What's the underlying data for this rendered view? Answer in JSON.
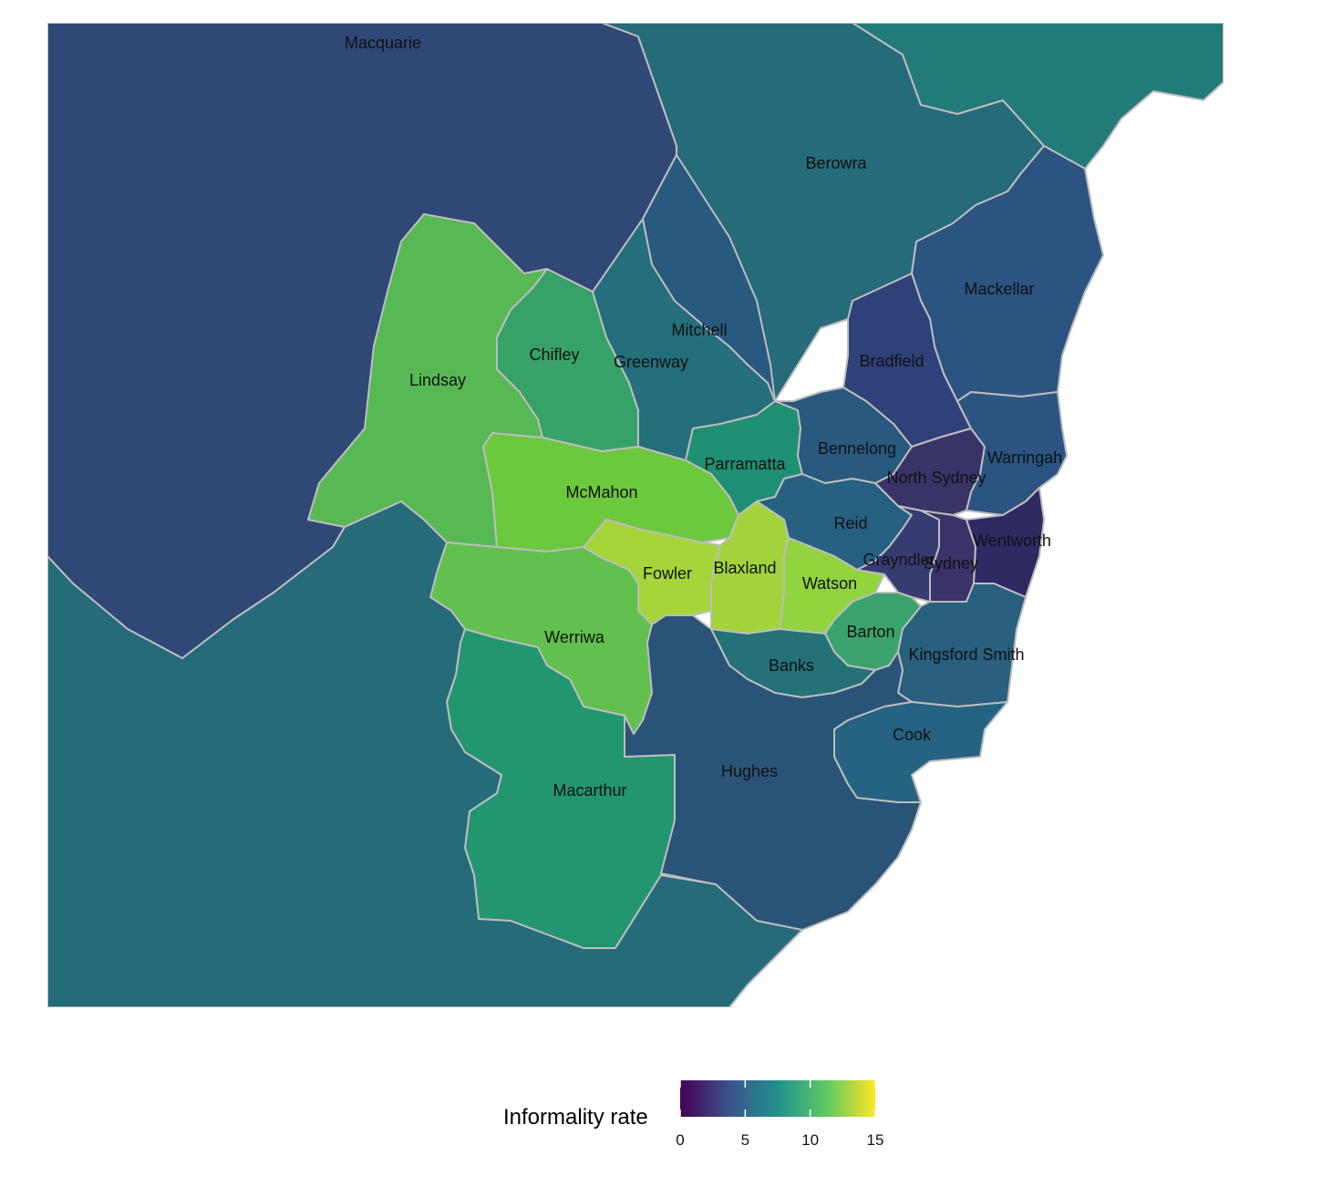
{
  "legend": {
    "title": "Informality rate",
    "min": 0,
    "max": 15,
    "ticks": [
      {
        "value": 0,
        "label": "0"
      },
      {
        "value": 5,
        "label": "5"
      },
      {
        "value": 10,
        "label": "10"
      },
      {
        "value": 15,
        "label": "15"
      }
    ],
    "colors": [
      "#440154",
      "#3b528b",
      "#21918c",
      "#5ec962",
      "#fde725"
    ]
  },
  "regions": [
    {
      "label": "Macquarie",
      "value": 4.8,
      "color": "#2f4875"
    },
    {
      "label": "Berowra",
      "value": 7.0,
      "color": "#256b7a"
    },
    {
      "label": "",
      "value": 8.2,
      "color": "#227b79"
    },
    {
      "label": "Mackellar",
      "value": 5.3,
      "color": "#2b5481"
    },
    {
      "label": "Bradfield",
      "value": 3.4,
      "color": "#2e4178"
    },
    {
      "label": "Lindsay",
      "value": 12.0,
      "color": "#57b954"
    },
    {
      "label": "Chifley",
      "value": 10.4,
      "color": "#37a268"
    },
    {
      "label": "Greenway",
      "value": 7.2,
      "color": "#256e7b"
    },
    {
      "label": "Mitchell",
      "value": 5.6,
      "color": "#285a7f"
    },
    {
      "label": "Parramatta",
      "value": 9.4,
      "color": "#1f8f73"
    },
    {
      "label": "Bennelong",
      "value": 5.6,
      "color": "#285a7f"
    },
    {
      "label": "North Sydney",
      "value": 2.4,
      "color": "#393468"
    },
    {
      "label": "Warringah",
      "value": 5.3,
      "color": "#2b5481"
    },
    {
      "label": "McMahon",
      "value": 13.4,
      "color": "#6cc83c"
    },
    {
      "label": "Reid",
      "value": 6.2,
      "color": "#266182"
    },
    {
      "label": "Fowler",
      "value": 14.6,
      "color": "#a5d539"
    },
    {
      "label": "Blaxland",
      "value": 14.4,
      "color": "#a3d43b"
    },
    {
      "label": "Watson",
      "value": 13.9,
      "color": "#91d43e"
    },
    {
      "label": "Grayndler",
      "value": 3.6,
      "color": "#363c72"
    },
    {
      "label": "Sydney",
      "value": 3.0,
      "color": "#3a336a"
    },
    {
      "label": "Wentworth",
      "value": 1.8,
      "color": "#2f2964"
    },
    {
      "label": "Barton",
      "value": 10.6,
      "color": "#3aa36b"
    },
    {
      "label": "Banks",
      "value": 7.4,
      "color": "#247278"
    },
    {
      "label": "Kingsford Smith",
      "value": 6.0,
      "color": "#28607e"
    },
    {
      "label": "Werriwa",
      "value": 12.8,
      "color": "#61c04e"
    },
    {
      "label": "Macarthur",
      "value": 9.6,
      "color": "#22966f"
    },
    {
      "label": "Hughes",
      "value": 5.5,
      "color": "#2a5477"
    },
    {
      "label": "Cook",
      "value": 6.3,
      "color": "#266382"
    },
    {
      "label": "",
      "value": 7.0,
      "color": "#256b7a"
    }
  ]
}
